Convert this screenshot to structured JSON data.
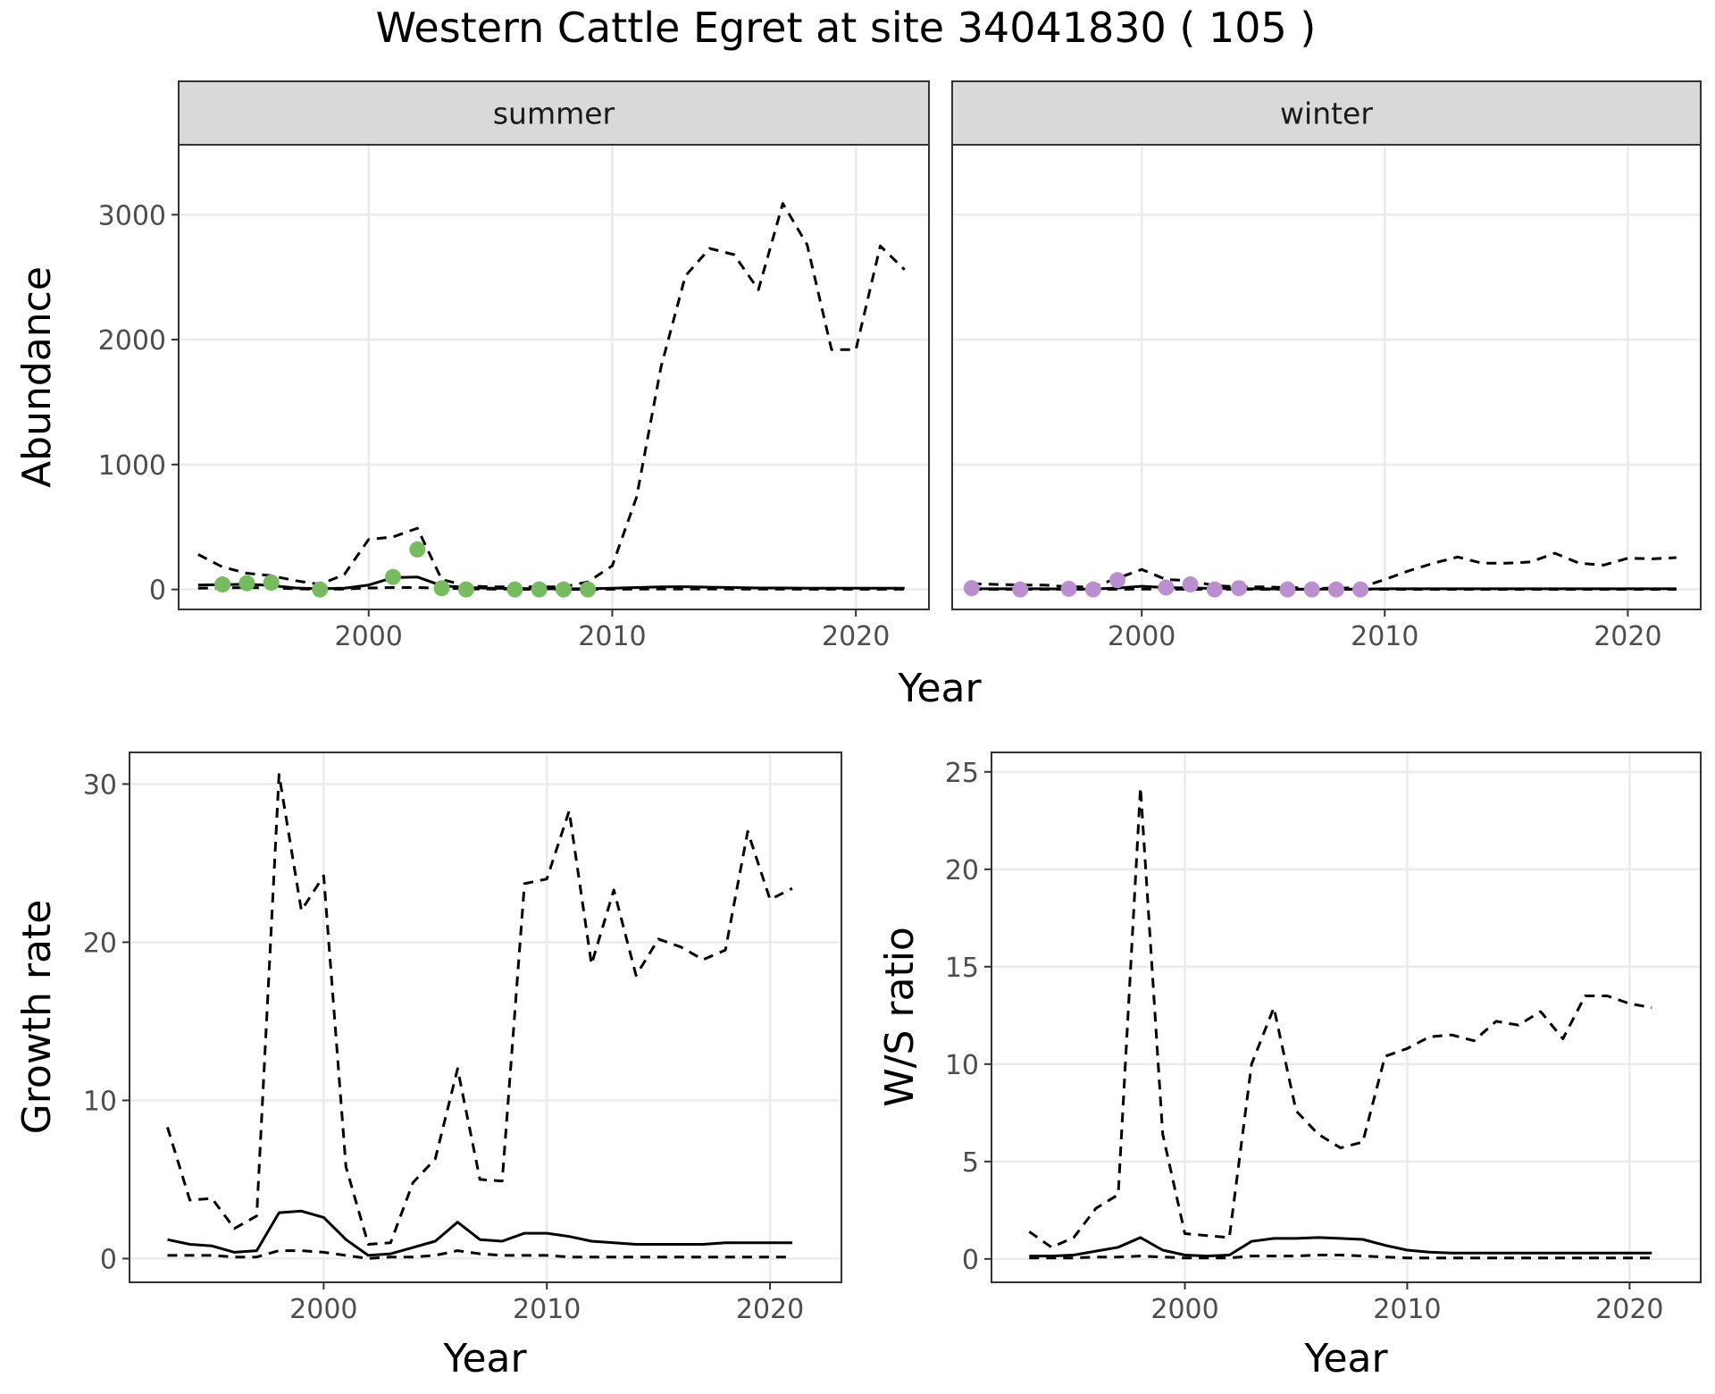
{
  "title": "Western Cattle Egret at site 34041830 ( 105 )",
  "colors": {
    "summer_points": "#76bb5f",
    "winter_points": "#bb8fcf",
    "line": "#000000",
    "strip_bg": "#d9d9d9",
    "grid_major": "#ebebeb",
    "grid_minor": "#f4f4f4"
  },
  "chart_data": [
    {
      "id": "abundance",
      "type": "line",
      "facets": [
        "summer",
        "winter"
      ],
      "xlabel": "Year",
      "ylabel": "Abundance",
      "xlim": [
        1992.2,
        2023.0
      ],
      "ylim": [
        -160,
        3560
      ],
      "x_ticks": [
        2000,
        2010,
        2020
      ],
      "y_ticks": [
        0,
        1000,
        2000,
        3000
      ],
      "grid": true,
      "panels": [
        {
          "facet": "summer",
          "series": [
            {
              "style": "dashed",
              "x": [
                1993,
                1994,
                1995,
                1996,
                1997,
                1998,
                1999,
                2000,
                2001,
                2002,
                2003,
                2004,
                2005,
                2006,
                2007,
                2008,
                2009,
                2010,
                2011,
                2012,
                2013,
                2014,
                2015,
                2016,
                2017,
                2018,
                2019,
                2020,
                2021,
                2022
              ],
              "y": [
                280,
                180,
                130,
                110,
                70,
                40,
                120,
                400,
                420,
                490,
                80,
                30,
                20,
                20,
                20,
                20,
                60,
                190,
                740,
                1780,
                2510,
                2730,
                2680,
                2400,
                3090,
                2760,
                1920,
                1920,
                2750,
                2560
              ]
            },
            {
              "style": "solid",
              "x": [
                1993,
                1994,
                1995,
                1996,
                1997,
                1998,
                1999,
                2000,
                2001,
                2002,
                2003,
                2004,
                2005,
                2006,
                2007,
                2008,
                2009,
                2010,
                2011,
                2012,
                2013,
                2014,
                2015,
                2016,
                2017,
                2018,
                2019,
                2020,
                2021,
                2022
              ],
              "y": [
                35,
                38,
                42,
                32,
                12,
                5,
                10,
                35,
                95,
                100,
                30,
                15,
                10,
                8,
                5,
                5,
                5,
                10,
                15,
                20,
                22,
                18,
                15,
                12,
                12,
                10,
                10,
                10,
                10,
                10
              ]
            },
            {
              "style": "dashed",
              "x": [
                1993,
                1994,
                1995,
                1996,
                1997,
                1998,
                1999,
                2000,
                2001,
                2002,
                2003,
                2004,
                2005,
                2006,
                2007,
                2008,
                2009,
                2010,
                2011,
                2012,
                2013,
                2014,
                2015,
                2016,
                2017,
                2018,
                2019,
                2020,
                2021,
                2022
              ],
              "y": [
                10,
                12,
                15,
                12,
                5,
                2,
                3,
                12,
                15,
                15,
                10,
                5,
                3,
                2,
                1,
                1,
                1,
                2,
                3,
                4,
                4,
                4,
                3,
                3,
                3,
                2,
                2,
                2,
                2,
                2
              ]
            }
          ],
          "points": {
            "x": [
              1994,
              1995,
              1996,
              1998,
              2001,
              2002,
              2003,
              2004,
              2006,
              2007,
              2008,
              2009
            ],
            "y": [
              40,
              50,
              55,
              0,
              100,
              320,
              10,
              0,
              0,
              0,
              0,
              0
            ]
          }
        },
        {
          "facet": "winter",
          "series": [
            {
              "style": "dashed",
              "x": [
                1993,
                1994,
                1995,
                1996,
                1997,
                1998,
                1999,
                2000,
                2001,
                2002,
                2003,
                2004,
                2005,
                2006,
                2007,
                2008,
                2009,
                2010,
                2011,
                2012,
                2013,
                2014,
                2015,
                2016,
                2017,
                2018,
                2019,
                2020,
                2021,
                2022
              ],
              "y": [
                45,
                40,
                35,
                35,
                20,
                20,
                90,
                160,
                80,
                70,
                30,
                20,
                20,
                15,
                10,
                10,
                15,
                80,
                150,
                210,
                260,
                210,
                210,
                220,
                290,
                210,
                195,
                250,
                245,
                255
              ]
            },
            {
              "style": "solid",
              "x": [
                1993,
                1994,
                1995,
                1996,
                1997,
                1998,
                1999,
                2000,
                2001,
                2002,
                2003,
                2004,
                2005,
                2006,
                2007,
                2008,
                2009,
                2010,
                2011,
                2012,
                2013,
                2014,
                2015,
                2016,
                2017,
                2018,
                2019,
                2020,
                2021,
                2022
              ],
              "y": [
                5,
                5,
                5,
                5,
                3,
                3,
                12,
                25,
                15,
                12,
                8,
                5,
                5,
                3,
                3,
                3,
                3,
                5,
                5,
                5,
                5,
                5,
                5,
                5,
                5,
                5,
                5,
                5,
                5,
                5
              ]
            },
            {
              "style": "dashed",
              "x": [
                1993,
                1994,
                1995,
                1996,
                1997,
                1998,
                1999,
                2000,
                2001,
                2002,
                2003,
                2004,
                2005,
                2006,
                2007,
                2008,
                2009,
                2010,
                2011,
                2012,
                2013,
                2014,
                2015,
                2016,
                2017,
                2018,
                2019,
                2020,
                2021,
                2022
              ],
              "y": [
                1,
                1,
                1,
                1,
                1,
                1,
                2,
                3,
                2,
                2,
                1,
                1,
                1,
                1,
                1,
                1,
                1,
                1,
                1,
                1,
                1,
                1,
                1,
                1,
                1,
                1,
                1,
                1,
                1,
                1
              ]
            }
          ],
          "points": {
            "x": [
              1993,
              1995,
              1997,
              1998,
              1999,
              2001,
              2002,
              2003,
              2004,
              2006,
              2007,
              2008,
              2009
            ],
            "y": [
              10,
              0,
              5,
              0,
              75,
              15,
              40,
              0,
              10,
              0,
              0,
              0,
              0
            ]
          }
        }
      ]
    },
    {
      "id": "growth",
      "type": "line",
      "xlabel": "Year",
      "ylabel": "Growth rate",
      "xlim": [
        1991.3,
        2023.2
      ],
      "ylim": [
        -1.5,
        32
      ],
      "x_ticks": [
        2000,
        2010,
        2020
      ],
      "y_ticks": [
        0,
        10,
        20,
        30
      ],
      "grid": true,
      "series": [
        {
          "style": "dashed",
          "x": [
            1993,
            1994,
            1995,
            1996,
            1997,
            1998,
            1999,
            2000,
            2001,
            2002,
            2003,
            2004,
            2005,
            2006,
            2007,
            2008,
            2009,
            2010,
            2011,
            2012,
            2013,
            2014,
            2015,
            2016,
            2017,
            2018,
            2019,
            2020,
            2021
          ],
          "y": [
            8.3,
            3.7,
            3.8,
            1.9,
            2.7,
            30.6,
            22.0,
            24.2,
            5.8,
            0.9,
            1.0,
            4.8,
            6.3,
            12.0,
            5.0,
            4.9,
            23.7,
            24.0,
            28.3,
            18.6,
            23.3,
            17.9,
            20.2,
            19.7,
            18.9,
            19.5,
            27.0,
            22.7,
            23.4
          ]
        },
        {
          "style": "solid",
          "x": [
            1993,
            1994,
            1995,
            1996,
            1997,
            1998,
            1999,
            2000,
            2001,
            2002,
            2003,
            2004,
            2005,
            2006,
            2007,
            2008,
            2009,
            2010,
            2011,
            2012,
            2013,
            2014,
            2015,
            2016,
            2017,
            2018,
            2019,
            2020,
            2021
          ],
          "y": [
            1.2,
            0.9,
            0.8,
            0.4,
            0.5,
            2.9,
            3.0,
            2.6,
            1.2,
            0.2,
            0.3,
            0.7,
            1.1,
            2.3,
            1.2,
            1.1,
            1.6,
            1.6,
            1.4,
            1.1,
            1.0,
            0.9,
            0.9,
            0.9,
            0.9,
            1.0,
            1.0,
            1.0,
            1.0
          ]
        },
        {
          "style": "dashed",
          "x": [
            1993,
            1994,
            1995,
            1996,
            1997,
            1998,
            1999,
            2000,
            2001,
            2002,
            2003,
            2004,
            2005,
            2006,
            2007,
            2008,
            2009,
            2010,
            2011,
            2012,
            2013,
            2014,
            2015,
            2016,
            2017,
            2018,
            2019,
            2020,
            2021
          ],
          "y": [
            0.2,
            0.2,
            0.2,
            0.1,
            0.1,
            0.5,
            0.5,
            0.4,
            0.2,
            0.0,
            0.1,
            0.1,
            0.2,
            0.5,
            0.3,
            0.2,
            0.2,
            0.2,
            0.1,
            0.1,
            0.1,
            0.1,
            0.1,
            0.1,
            0.1,
            0.1,
            0.1,
            0.1,
            0.1
          ]
        }
      ]
    },
    {
      "id": "ws_ratio",
      "type": "line",
      "xlabel": "Year",
      "ylabel": "W/S ratio",
      "xlim": [
        1991.3,
        2023.2
      ],
      "ylim": [
        -1.2,
        26.0
      ],
      "x_ticks": [
        2000,
        2010,
        2020
      ],
      "y_ticks": [
        0,
        5,
        10,
        15,
        20,
        25
      ],
      "grid": true,
      "series": [
        {
          "style": "dashed",
          "x": [
            1993,
            1994,
            1995,
            1996,
            1997,
            1998,
            1999,
            2000,
            2001,
            2002,
            2003,
            2004,
            2005,
            2006,
            2007,
            2008,
            2009,
            2010,
            2011,
            2012,
            2013,
            2014,
            2015,
            2016,
            2017,
            2018,
            2019,
            2020,
            2021
          ],
          "y": [
            1.4,
            0.6,
            1.1,
            2.6,
            3.3,
            24.2,
            6.4,
            1.3,
            1.2,
            1.1,
            10.0,
            12.9,
            7.6,
            6.4,
            5.7,
            6.0,
            10.4,
            10.8,
            11.4,
            11.5,
            11.2,
            12.2,
            12.0,
            12.7,
            11.3,
            13.5,
            13.5,
            13.1,
            12.9
          ]
        },
        {
          "style": "solid",
          "x": [
            1993,
            1994,
            1995,
            1996,
            1997,
            1998,
            1999,
            2000,
            2001,
            2002,
            2003,
            2004,
            2005,
            2006,
            2007,
            2008,
            2009,
            2010,
            2011,
            2012,
            2013,
            2014,
            2015,
            2016,
            2017,
            2018,
            2019,
            2020,
            2021
          ],
          "y": [
            0.15,
            0.15,
            0.2,
            0.4,
            0.6,
            1.1,
            0.45,
            0.2,
            0.15,
            0.2,
            0.9,
            1.05,
            1.05,
            1.1,
            1.05,
            1.0,
            0.7,
            0.45,
            0.35,
            0.3,
            0.3,
            0.3,
            0.3,
            0.3,
            0.3,
            0.3,
            0.3,
            0.3,
            0.3
          ]
        },
        {
          "style": "dashed",
          "x": [
            1993,
            1994,
            1995,
            1996,
            1997,
            1998,
            1999,
            2000,
            2001,
            2002,
            2003,
            2004,
            2005,
            2006,
            2007,
            2008,
            2009,
            2010,
            2011,
            2012,
            2013,
            2014,
            2015,
            2016,
            2017,
            2018,
            2019,
            2020,
            2021
          ],
          "y": [
            0.05,
            0.05,
            0.05,
            0.1,
            0.1,
            0.15,
            0.1,
            0.05,
            0.05,
            0.05,
            0.15,
            0.15,
            0.15,
            0.2,
            0.2,
            0.15,
            0.1,
            0.05,
            0.05,
            0.05,
            0.05,
            0.05,
            0.05,
            0.05,
            0.05,
            0.05,
            0.05,
            0.05,
            0.05
          ]
        }
      ]
    }
  ]
}
